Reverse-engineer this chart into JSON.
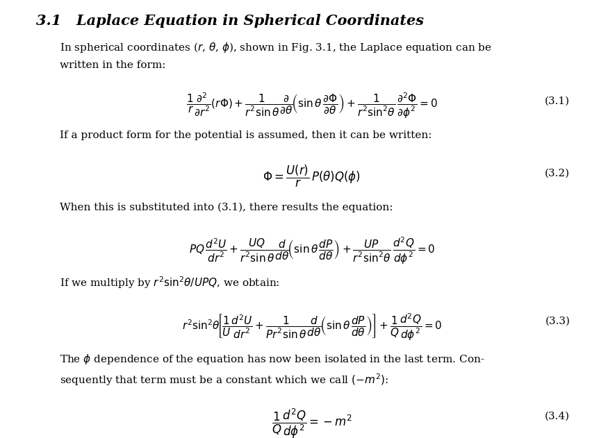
{
  "title": "3.1   Laplace Equation in Spherical Coordinates",
  "background_color": "#ffffff",
  "text_color": "#000000",
  "figsize": [
    8.75,
    6.31
  ],
  "dpi": 100,
  "paragraph1": "In spherical coordinates ($r$, $\\theta$, $\\phi$), shown in Fig. 3.1, the Laplace equation can be\nwritten in the form:",
  "eq1": "$\\dfrac{1}{r}\\dfrac{\\partial^2}{\\partial r^2}(r\\Phi) + \\dfrac{1}{r^2\\sin\\theta}\\dfrac{\\partial}{\\partial\\theta}\\!\\left(\\sin\\theta\\,\\dfrac{\\partial\\Phi}{\\partial\\theta}\\right) + \\dfrac{1}{r^2\\sin^2\\!\\theta}\\,\\dfrac{\\partial^2\\Phi}{\\partial\\phi^2} = 0$",
  "eq1_num": "(3.1)",
  "paragraph2": "If a product form for the potential is assumed, then it can be written:",
  "eq2": "$\\Phi = \\dfrac{U(r)}{r}\\,P(\\theta)Q(\\phi)$",
  "eq2_num": "(3.2)",
  "paragraph3": "When this is substituted into (3.1), there results the equation:",
  "eq3": "$PQ\\,\\dfrac{d^2U}{dr^2} + \\dfrac{UQ}{r^2\\sin\\theta}\\dfrac{d}{d\\theta}\\!\\left(\\sin\\theta\\,\\dfrac{dP}{d\\theta}\\right) + \\dfrac{UP}{r^2\\sin^2\\!\\theta}\\,\\dfrac{d^2Q}{d\\phi^2} = 0$",
  "paragraph4": "If we multiply by $r^2\\sin^2\\!\\theta/UPQ$, we obtain:",
  "eq4": "$r^2\\sin^2\\!\\theta\\!\\left[\\dfrac{1}{U}\\dfrac{d^2U}{dr^2} + \\dfrac{1}{Pr^2\\sin\\theta}\\dfrac{d}{d\\theta}\\!\\left(\\sin\\theta\\,\\dfrac{dP}{d\\theta}\\right)\\right] + \\dfrac{1}{Q}\\dfrac{d^2Q}{d\\phi^2} = 0$",
  "eq4_num": "(3.3)",
  "paragraph5": "The $\\phi$ dependence of the equation has now been isolated in the last term. Consequently that term must be a constant which we call $(-m^2)$:",
  "eq5": "$\\dfrac{1}{Q}\\dfrac{d^2Q}{d\\phi^2} = -m^2$",
  "eq5_num": "(3.4)"
}
